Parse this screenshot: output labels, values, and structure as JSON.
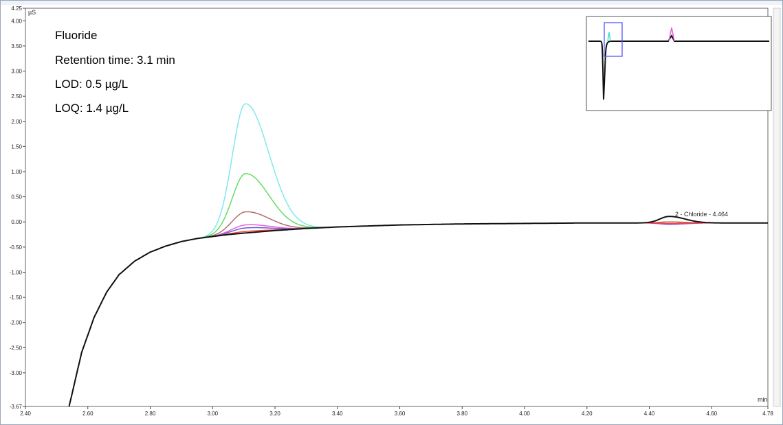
{
  "chart_data": {
    "type": "line",
    "ylabel": "µS",
    "xlabel": "min",
    "xlim": [
      2.4,
      4.78
    ],
    "ylim": [
      -3.67,
      4.25
    ],
    "x_ticks": [
      "2.40",
      "2.60",
      "2.80",
      "3.00",
      "3.20",
      "3.40",
      "3.60",
      "3.80",
      "4.00",
      "4.20",
      "4.40",
      "4.60",
      "4.78"
    ],
    "y_ticks": [
      "4.25",
      "4.00",
      "3.50",
      "3.00",
      "2.50",
      "2.00",
      "1.50",
      "1.00",
      "0.50",
      "0.00",
      "-0.50",
      "-1.00",
      "-1.50",
      "-2.00",
      "-2.50",
      "-3.00",
      "-3.67"
    ],
    "grid": false,
    "annotation": {
      "lines": [
        "Fluoride",
        "Retention time: 3.1 min",
        "LOD: 0.5 µg/L",
        "LOQ: 1.4 µg/L"
      ]
    },
    "peak_label": "2 - Chloride - 4.464",
    "baseline": [
      [
        2.54,
        -3.67
      ],
      [
        2.58,
        -2.6
      ],
      [
        2.62,
        -1.9
      ],
      [
        2.66,
        -1.4
      ],
      [
        2.7,
        -1.05
      ],
      [
        2.75,
        -0.78
      ],
      [
        2.8,
        -0.6
      ],
      [
        2.85,
        -0.48
      ],
      [
        2.9,
        -0.39
      ],
      [
        2.95,
        -0.33
      ],
      [
        3.0,
        -0.29
      ],
      [
        3.05,
        -0.25
      ],
      [
        3.1,
        -0.22
      ],
      [
        3.2,
        -0.17
      ],
      [
        3.3,
        -0.13
      ],
      [
        3.4,
        -0.1
      ],
      [
        3.5,
        -0.08
      ],
      [
        3.6,
        -0.06
      ],
      [
        3.8,
        -0.04
      ],
      [
        4.0,
        -0.03
      ],
      [
        4.2,
        -0.02
      ],
      [
        4.4,
        -0.02
      ],
      [
        4.6,
        -0.02
      ],
      [
        4.78,
        -0.02
      ]
    ],
    "series": [
      {
        "color": "#7fe8ee",
        "fluoride_peak": 2.35,
        "chloride_peak": 0.0
      },
      {
        "color": "#5fe05f",
        "fluoride_peak": 0.96,
        "chloride_peak": 0.0
      },
      {
        "color": "#b06a6a",
        "fluoride_peak": 0.2,
        "chloride_peak": 0.0
      },
      {
        "color": "#e060e0",
        "fluoride_peak": -0.06,
        "chloride_peak": -0.05
      },
      {
        "color": "#6a5acd",
        "fluoride_peak": -0.12,
        "chloride_peak": -0.04
      },
      {
        "color": "#ff4040",
        "fluoride_peak": -0.19,
        "chloride_peak": -0.03
      },
      {
        "color": "#111111",
        "fluoride_peak": -0.22,
        "chloride_peak": 0.11
      }
    ],
    "inset": {
      "description_colors": {
        "highlight_box": "#5555ff",
        "trace": "#111111",
        "accent1": "#40e0d0",
        "accent2": "#e060e0"
      }
    }
  }
}
